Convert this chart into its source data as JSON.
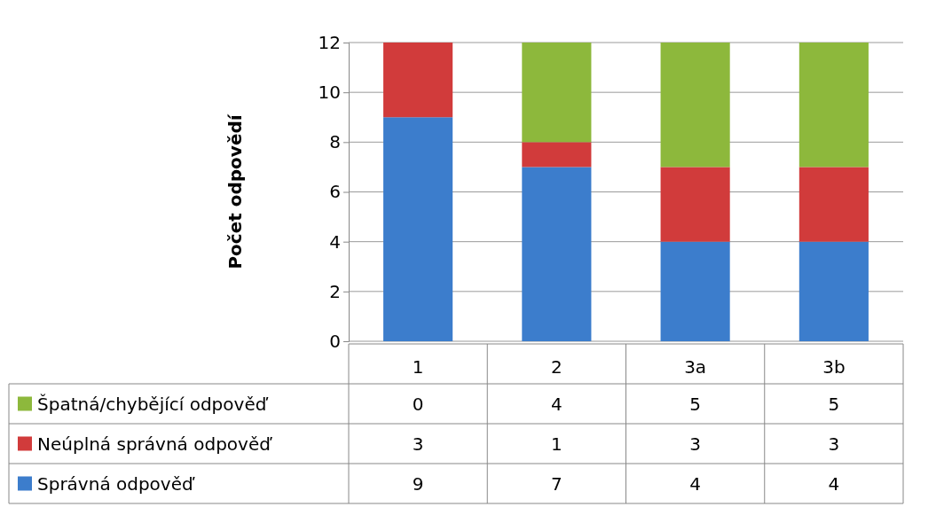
{
  "chart_data": {
    "type": "bar",
    "ylabel": "Počet odpovědí",
    "categories": [
      "1",
      "2",
      "3a",
      "3b"
    ],
    "stacked": true,
    "ylim": [
      0,
      12
    ],
    "yticks": [
      0,
      2,
      4,
      6,
      8,
      10,
      12
    ],
    "grid": "y",
    "legend": "bottom",
    "data_labels": true,
    "series": [
      {
        "name": "Správná odpověď",
        "color": "#3c7dcc",
        "values": [
          9,
          7,
          4,
          4
        ]
      },
      {
        "name": "Neúplná správná odpověď",
        "color": "#d13b3b",
        "values": [
          3,
          1,
          3,
          3
        ]
      },
      {
        "name": "Špatná/chybějící odpověď",
        "color": "#8db83c",
        "values": [
          0,
          4,
          5,
          5
        ]
      }
    ]
  }
}
